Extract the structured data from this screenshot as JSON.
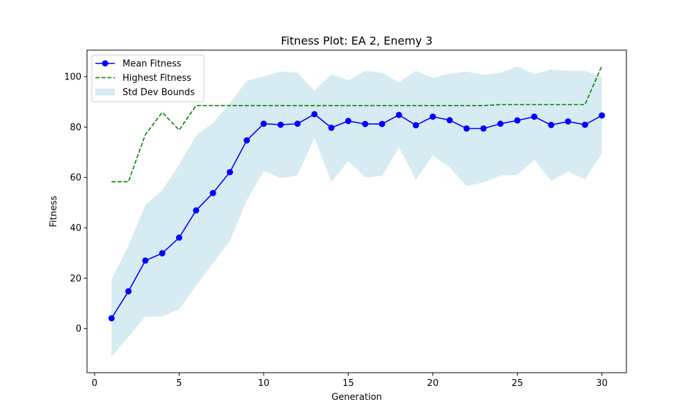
{
  "chart_data": {
    "type": "line",
    "title": "Fitness Plot: EA 2, Enemy 3",
    "xlabel": "Generation",
    "ylabel": "Fitness",
    "xlim": [
      -0.45,
      31.45
    ],
    "ylim": [
      -17.5,
      110.5
    ],
    "xticks": [
      0,
      5,
      10,
      15,
      20,
      25,
      30
    ],
    "yticks": [
      0,
      20,
      40,
      60,
      80,
      100
    ],
    "grid": false,
    "legend_position": "top-left",
    "x": [
      1,
      2,
      3,
      4,
      5,
      6,
      7,
      8,
      9,
      10,
      11,
      12,
      13,
      14,
      15,
      16,
      17,
      18,
      19,
      20,
      21,
      22,
      23,
      24,
      25,
      26,
      27,
      28,
      29,
      30
    ],
    "series": [
      {
        "name": "Mean Fitness",
        "style": "line-marker",
        "color": "#0000ff",
        "values": [
          4.1,
          14.8,
          27.0,
          29.9,
          36.1,
          46.9,
          53.8,
          62.1,
          74.7,
          81.3,
          80.9,
          81.3,
          85.1,
          79.7,
          82.4,
          81.2,
          81.2,
          84.8,
          80.7,
          84.1,
          82.7,
          79.4,
          79.4,
          81.3,
          82.6,
          84.1,
          80.8,
          82.2,
          80.9,
          84.6
        ]
      },
      {
        "name": "Highest Fitness",
        "style": "dashed",
        "color": "#008000",
        "values": [
          58.3,
          58.3,
          77.0,
          85.8,
          78.8,
          88.5,
          88.5,
          88.5,
          88.5,
          88.5,
          88.5,
          88.5,
          88.5,
          88.5,
          88.5,
          88.5,
          88.5,
          88.5,
          88.5,
          88.5,
          88.5,
          88.5,
          88.5,
          88.9,
          88.9,
          88.9,
          88.9,
          88.9,
          88.9,
          104.3
        ]
      },
      {
        "name": "Std Dev Bounds",
        "style": "band",
        "color": "#add8e6",
        "upper": [
          19.3,
          33.0,
          49.0,
          55.0,
          65.0,
          76.7,
          81.6,
          89.4,
          98.4,
          100.0,
          102.0,
          101.5,
          94.4,
          100.9,
          98.5,
          102.3,
          101.5,
          97.7,
          102.3,
          99.4,
          101.2,
          102.0,
          100.7,
          101.5,
          104.0,
          101.0,
          102.8,
          102.3,
          102.3,
          99.6
        ],
        "lower": [
          -11.2,
          -3.2,
          4.8,
          4.8,
          7.7,
          17.0,
          26.0,
          34.8,
          51.0,
          62.6,
          59.7,
          60.8,
          75.8,
          58.2,
          66.5,
          60.0,
          60.6,
          72.0,
          59.1,
          68.8,
          64.0,
          56.6,
          58.0,
          60.8,
          61.0,
          67.1,
          58.7,
          62.3,
          59.3,
          69.5
        ]
      }
    ]
  }
}
